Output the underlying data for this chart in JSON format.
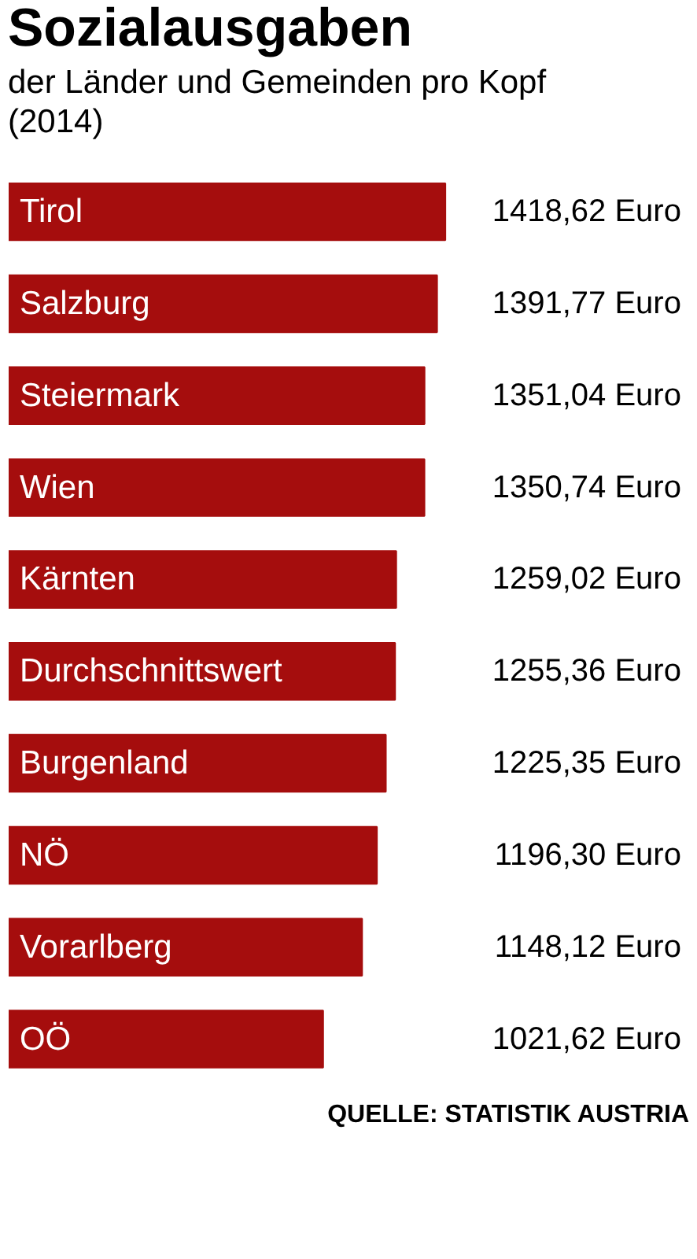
{
  "chart_data": {
    "type": "bar",
    "orientation": "horizontal",
    "title": "Sozialausgaben",
    "subtitle": "der Länder und Gemeinden pro Kopf (2014)",
    "categories": [
      "Tirol",
      "Salzburg",
      "Steiermark",
      "Wien",
      "Kärnten",
      "Durchschnittswert",
      "Burgenland",
      "NÖ",
      "Vorarlberg",
      "OÖ"
    ],
    "values": [
      1418.62,
      1391.77,
      1351.04,
      1350.74,
      1259.02,
      1255.36,
      1225.35,
      1196.3,
      1148.12,
      1021.62
    ],
    "value_labels": [
      "1418,62 Euro",
      "1391,77 Euro",
      "1351,04 Euro",
      "1350,74 Euro",
      "1259,02 Euro",
      "1255,36 Euro",
      "1225,35 Euro",
      "1196,30 Euro",
      "1148,12 Euro",
      "1021,62 Euro"
    ],
    "color": "#a50d0d",
    "grid": false,
    "annotations": [
      "QUELLE: STATISTIK AUSTRIA"
    ]
  }
}
